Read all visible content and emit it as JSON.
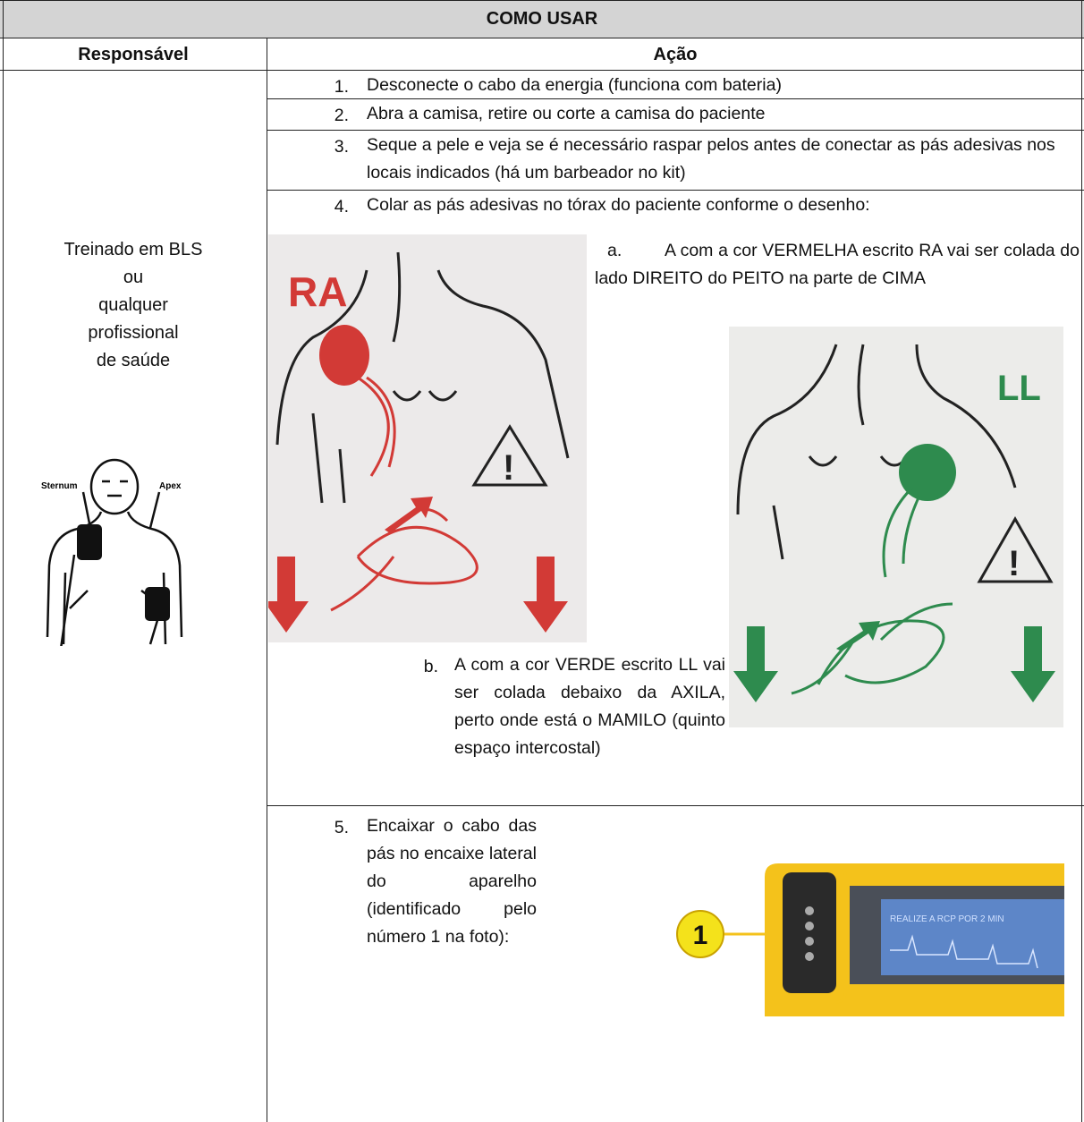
{
  "header": {
    "title": "COMO USAR"
  },
  "columns": [
    "Responsável",
    "Ação"
  ],
  "responsible": [
    "Treinado em BLS",
    "ou",
    "qualquer",
    "profissional",
    "de saúde"
  ],
  "steps": [
    {
      "number": "1.",
      "text": "Desconecte o cabo da energia (funciona com bateria)"
    },
    {
      "number": "2.",
      "text": "Abra a camisa, retire ou corte a camisa do paciente"
    },
    {
      "number": "3.",
      "text": "Seque a pele e veja se é necessário raspar pelos antes de conectar as pás adesivas nos locais indicados (há um barbeador no kit)"
    },
    {
      "number": "4.",
      "text": "Colar as pás adesivas no tórax do paciente conforme o desenho:"
    },
    {
      "number": "5.",
      "text": "Encaixar o cabo das pás no encaixe lateral do aparelho (identificado pelo número 1 na foto):"
    }
  ],
  "step4_items": [
    {
      "marker": "a.",
      "text": "A com a cor VERMELHA escrito RA vai ser colada do lado DIREITO do PEITO na parte de CIMA"
    },
    {
      "marker": "b.",
      "text": "A com a cor VERDE escrito LL vai ser colada debaixo da AXILA, perto onde está o MAMILO (quinto espaço intercostal)"
    }
  ],
  "figures": {
    "body": {
      "labels": [
        "Sternum",
        "Apex"
      ]
    },
    "pad_ra": {
      "label": "RA"
    },
    "pad_ll": {
      "label": "LL"
    },
    "device": {
      "callout": "1",
      "screen": "REALIZE A RCP POR 2 MIN"
    }
  }
}
